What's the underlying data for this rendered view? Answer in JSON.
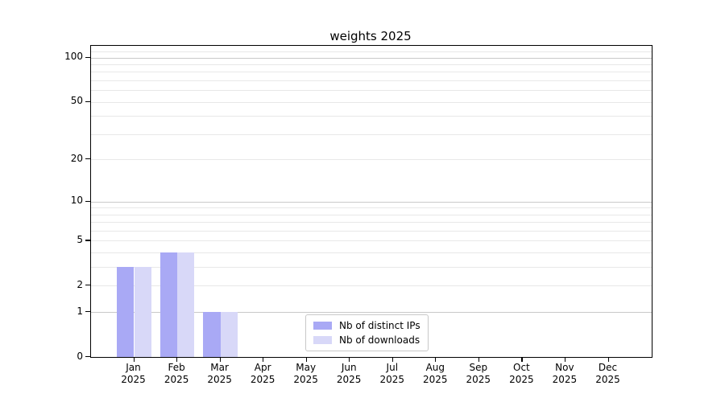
{
  "chart_data": {
    "type": "bar",
    "title": "weights 2025",
    "categories": [
      "Jan",
      "Feb",
      "Mar",
      "Apr",
      "May",
      "Jun",
      "Jul",
      "Aug",
      "Sep",
      "Oct",
      "Nov",
      "Dec"
    ],
    "category_year": "2025",
    "series": [
      {
        "name": "Nb of distinct IPs",
        "color": "#a9a9f5",
        "values": [
          3,
          4,
          1,
          0,
          0,
          0,
          0,
          0,
          0,
          0,
          0,
          0
        ]
      },
      {
        "name": "Nb of downloads",
        "color": "#d8d8f8",
        "values": [
          3,
          4,
          1,
          0,
          0,
          0,
          0,
          0,
          0,
          0,
          0,
          0
        ]
      }
    ],
    "yscale": "log1p",
    "ylim": [
      0,
      120
    ],
    "yticks": [
      0,
      1,
      2,
      5,
      10,
      20,
      50,
      100
    ],
    "ytick_labels": [
      "0",
      "1",
      "2",
      "5",
      "10",
      "20",
      "50",
      "100"
    ],
    "major_gridlines": [
      1,
      10,
      100
    ],
    "minor_gridlines": [
      2,
      3,
      4,
      5,
      6,
      7,
      8,
      9,
      20,
      30,
      40,
      50,
      60,
      70,
      80,
      90,
      110
    ],
    "grid": true,
    "legend_position": "lower center",
    "bar_width_ratio": 0.4
  },
  "legend": {
    "items": [
      {
        "label": "Nb of distinct IPs",
        "color": "#a9a9f5"
      },
      {
        "label": "Nb of downloads",
        "color": "#d8d8f8"
      }
    ]
  },
  "colors": {
    "bar_distinct_ips": "#a9a9f5",
    "bar_downloads": "#d8d8f8",
    "grid_major": "#c9c9c9",
    "grid_minor": "#e8e8e8",
    "spine": "#000000",
    "legend_border": "#c8c8c8",
    "text": "#000000"
  }
}
